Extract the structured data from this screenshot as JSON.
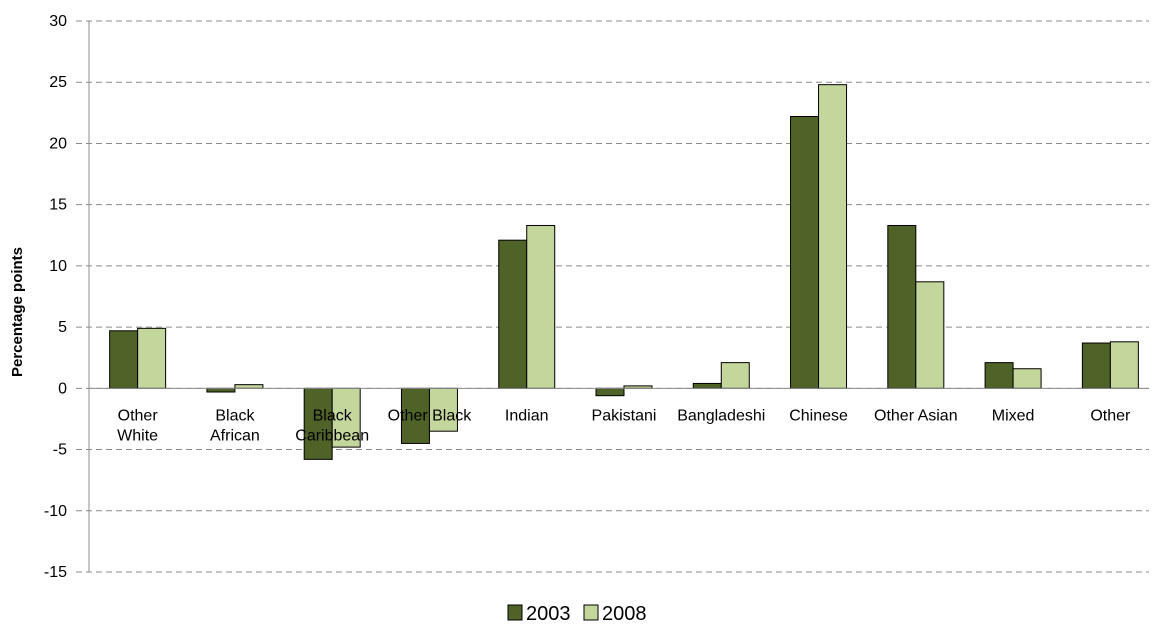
{
  "chart_data": {
    "type": "bar",
    "title": "",
    "xlabel": "",
    "ylabel": "Percentage points",
    "ylim": [
      -15,
      30
    ],
    "yticks": [
      30,
      25,
      20,
      15,
      10,
      5,
      0,
      -5,
      -10,
      -15
    ],
    "grid": true,
    "legend_position": "bottom",
    "categories": [
      [
        "Other",
        "White"
      ],
      [
        "Black",
        "African"
      ],
      [
        "Black",
        "Caribbean"
      ],
      [
        "Other Black"
      ],
      [
        "Indian"
      ],
      [
        "Pakistani"
      ],
      [
        "Bangladeshi"
      ],
      [
        "Chinese"
      ],
      [
        "Other Asian"
      ],
      [
        "Mixed"
      ],
      [
        "Other"
      ]
    ],
    "series": [
      {
        "name": "2003",
        "color": "#4f6228",
        "values": [
          4.7,
          -0.3,
          -5.8,
          -4.5,
          12.1,
          -0.6,
          0.4,
          22.2,
          13.3,
          2.1,
          3.7
        ]
      },
      {
        "name": "2008",
        "color": "#c3d69b",
        "values": [
          4.9,
          0.3,
          -4.8,
          -3.5,
          13.3,
          0.2,
          2.1,
          24.8,
          8.7,
          1.6,
          3.8
        ]
      }
    ]
  }
}
